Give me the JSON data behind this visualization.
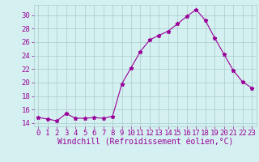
{
  "x": [
    0,
    1,
    2,
    3,
    4,
    5,
    6,
    7,
    8,
    9,
    10,
    11,
    12,
    13,
    14,
    15,
    16,
    17,
    18,
    19,
    20,
    21,
    22,
    23
  ],
  "y": [
    14.8,
    14.6,
    14.3,
    15.4,
    14.7,
    14.7,
    14.8,
    14.7,
    15.0,
    19.8,
    22.2,
    24.6,
    26.3,
    27.0,
    27.6,
    28.7,
    29.8,
    30.8,
    29.2,
    26.6,
    24.2,
    21.8,
    20.1,
    19.2
  ],
  "line_color": "#990099",
  "marker": "*",
  "marker_size": 3.5,
  "bg_color": "#d4f0f0",
  "grid_color": "#aacccc",
  "xlabel": "Windchill (Refroidissement éolien,°C)",
  "xlabel_color": "#990099",
  "xlabel_fontsize": 7.0,
  "tick_color": "#990099",
  "tick_fontsize": 6.5,
  "ylim": [
    13.5,
    31.5
  ],
  "yticks": [
    14,
    16,
    18,
    20,
    22,
    24,
    26,
    28,
    30
  ],
  "xlim": [
    -0.5,
    23.5
  ],
  "xticks": [
    0,
    1,
    2,
    3,
    4,
    5,
    6,
    7,
    8,
    9,
    10,
    11,
    12,
    13,
    14,
    15,
    16,
    17,
    18,
    19,
    20,
    21,
    22,
    23
  ]
}
